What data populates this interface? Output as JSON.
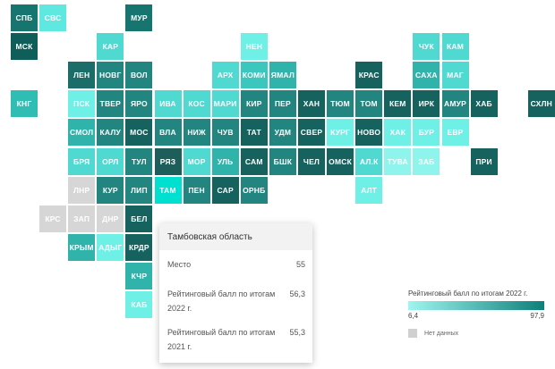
{
  "colors": {
    "no_data": "#d6d6d6",
    "scale_min": "#9ff5ef",
    "scale_max": "#0e7f7a",
    "highlight": "#00e0d0"
  },
  "regions": [
    {
      "code": "СПБ",
      "col": 0,
      "row": 0,
      "score": null,
      "tone": "#17756f"
    },
    {
      "code": "СВС",
      "col": 1,
      "row": 0,
      "tone": "#5fe8df"
    },
    {
      "code": "МУР",
      "col": 4,
      "row": 0,
      "tone": "#17756f"
    },
    {
      "code": "МСК",
      "col": 0,
      "row": 1,
      "tone": "#0f5e5a"
    },
    {
      "code": "КАР",
      "col": 3,
      "row": 1,
      "tone": "#4fd9d0"
    },
    {
      "code": "НЕН",
      "col": 8,
      "row": 1,
      "tone": "#6ff0e6"
    },
    {
      "code": "ЧУК",
      "col": 14,
      "row": 1,
      "tone": "#4fd9d0"
    },
    {
      "code": "КАМ",
      "col": 15,
      "row": 1,
      "tone": "#4fd9d0"
    },
    {
      "code": "ЛЕН",
      "col": 2,
      "row": 2,
      "tone": "#1b6d69"
    },
    {
      "code": "НОВГ",
      "col": 3,
      "row": 2,
      "tone": "#23857f"
    },
    {
      "code": "ВОЛ",
      "col": 4,
      "row": 2,
      "tone": "#23857f"
    },
    {
      "code": "АРХ",
      "col": 7,
      "row": 2,
      "tone": "#4fd9d0"
    },
    {
      "code": "КОМИ",
      "col": 8,
      "row": 2,
      "tone": "#3cc7be"
    },
    {
      "code": "ЯМАЛ",
      "col": 9,
      "row": 2,
      "tone": "#30b3ab"
    },
    {
      "code": "КРАС",
      "col": 12,
      "row": 2,
      "tone": "#16625e"
    },
    {
      "code": "САХА",
      "col": 14,
      "row": 2,
      "tone": "#30b3ab"
    },
    {
      "code": "МАГ",
      "col": 15,
      "row": 2,
      "tone": "#4fd9d0"
    },
    {
      "code": "КНГ",
      "col": 0,
      "row": 3,
      "tone": "#2fbdb4"
    },
    {
      "code": "ПСК",
      "col": 2,
      "row": 3,
      "tone": "#6ff0e6"
    },
    {
      "code": "ТВЕР",
      "col": 3,
      "row": 3,
      "tone": "#23857f"
    },
    {
      "code": "ЯРО",
      "col": 4,
      "row": 3,
      "tone": "#23857f"
    },
    {
      "code": "ИВА",
      "col": 5,
      "row": 3,
      "tone": "#4fd9d0"
    },
    {
      "code": "КОС",
      "col": 6,
      "row": 3,
      "tone": "#4fd9d0"
    },
    {
      "code": "МАРИ",
      "col": 7,
      "row": 3,
      "tone": "#4fd9d0"
    },
    {
      "code": "КИР",
      "col": 8,
      "row": 3,
      "tone": "#23857f"
    },
    {
      "code": "ПЕР",
      "col": 9,
      "row": 3,
      "tone": "#23857f"
    },
    {
      "code": "ХАН",
      "col": 10,
      "row": 3,
      "tone": "#16625e"
    },
    {
      "code": "ТЮМ",
      "col": 11,
      "row": 3,
      "tone": "#23857f"
    },
    {
      "code": "ТОМ",
      "col": 12,
      "row": 3,
      "tone": "#23857f"
    },
    {
      "code": "КЕМ",
      "col": 13,
      "row": 3,
      "tone": "#16625e"
    },
    {
      "code": "ИРК",
      "col": 14,
      "row": 3,
      "tone": "#16625e"
    },
    {
      "code": "АМУР",
      "col": 15,
      "row": 3,
      "tone": "#23857f"
    },
    {
      "code": "ХАБ",
      "col": 16,
      "row": 3,
      "tone": "#16625e"
    },
    {
      "code": "СХЛН",
      "col": 18,
      "row": 3,
      "tone": "#16625e"
    },
    {
      "code": "СМОЛ",
      "col": 2,
      "row": 4,
      "tone": "#30b3ab"
    },
    {
      "code": "КАЛУ",
      "col": 3,
      "row": 4,
      "tone": "#23857f"
    },
    {
      "code": "МОС",
      "col": 4,
      "row": 4,
      "tone": "#16625e"
    },
    {
      "code": "ВЛА",
      "col": 5,
      "row": 4,
      "tone": "#23857f"
    },
    {
      "code": "НИЖ",
      "col": 6,
      "row": 4,
      "tone": "#23857f"
    },
    {
      "code": "ЧУВ",
      "col": 7,
      "row": 4,
      "tone": "#23857f"
    },
    {
      "code": "ТАТ",
      "col": 8,
      "row": 4,
      "tone": "#16625e"
    },
    {
      "code": "УДМ",
      "col": 9,
      "row": 4,
      "tone": "#23857f"
    },
    {
      "code": "СВЕР",
      "col": 10,
      "row": 4,
      "tone": "#16625e"
    },
    {
      "code": "КУРГ",
      "col": 11,
      "row": 4,
      "tone": "#6ff0e6"
    },
    {
      "code": "НОВО",
      "col": 12,
      "row": 4,
      "tone": "#16625e"
    },
    {
      "code": "ХАК",
      "col": 13,
      "row": 4,
      "tone": "#6ff0e6"
    },
    {
      "code": "БУР",
      "col": 14,
      "row": 4,
      "tone": "#6ff0e6"
    },
    {
      "code": "ЕВР",
      "col": 15,
      "row": 4,
      "tone": "#6ff0e6"
    },
    {
      "code": "БРЯ",
      "col": 2,
      "row": 5,
      "tone": "#4fd9d0"
    },
    {
      "code": "ОРЛ",
      "col": 3,
      "row": 5,
      "tone": "#4fd9d0"
    },
    {
      "code": "ТУЛ",
      "col": 4,
      "row": 5,
      "tone": "#23857f"
    },
    {
      "code": "РЯЗ",
      "col": 5,
      "row": 5,
      "tone": "#1d5e5a"
    },
    {
      "code": "МОР",
      "col": 6,
      "row": 5,
      "tone": "#4fd9d0"
    },
    {
      "code": "УЛЬ",
      "col": 7,
      "row": 5,
      "tone": "#30b3ab"
    },
    {
      "code": "САМ",
      "col": 8,
      "row": 5,
      "tone": "#16625e"
    },
    {
      "code": "БШК",
      "col": 9,
      "row": 5,
      "tone": "#23857f"
    },
    {
      "code": "ЧЕЛ",
      "col": 10,
      "row": 5,
      "tone": "#16625e"
    },
    {
      "code": "ОМСК",
      "col": 11,
      "row": 5,
      "tone": "#16625e"
    },
    {
      "code": "АЛ.К",
      "col": 12,
      "row": 5,
      "tone": "#4fd9d0"
    },
    {
      "code": "ТУВА",
      "col": 13,
      "row": 5,
      "tone": "#8ff5ec"
    },
    {
      "code": "ЗАБ",
      "col": 14,
      "row": 5,
      "tone": "#8ff5ec"
    },
    {
      "code": "ПРИ",
      "col": 16,
      "row": 5,
      "tone": "#16625e"
    },
    {
      "code": "ЛНР",
      "col": 2,
      "row": 6,
      "tone": "#d6d6d6"
    },
    {
      "code": "КУР",
      "col": 3,
      "row": 6,
      "tone": "#23857f"
    },
    {
      "code": "ЛИП",
      "col": 4,
      "row": 6,
      "tone": "#23857f"
    },
    {
      "code": "ТАМ",
      "col": 5,
      "row": 6,
      "tone": "#00e0d0"
    },
    {
      "code": "ПЕН",
      "col": 6,
      "row": 6,
      "tone": "#23857f"
    },
    {
      "code": "САР",
      "col": 7,
      "row": 6,
      "tone": "#16625e"
    },
    {
      "code": "ОРНБ",
      "col": 8,
      "row": 6,
      "tone": "#23857f"
    },
    {
      "code": "АЛТ",
      "col": 12,
      "row": 6,
      "tone": "#6ff0e6"
    },
    {
      "code": "КРС",
      "col": 1,
      "row": 7,
      "tone": "#d6d6d6"
    },
    {
      "code": "ЗАП",
      "col": 2,
      "row": 7,
      "tone": "#d6d6d6"
    },
    {
      "code": "ДНР",
      "col": 3,
      "row": 7,
      "tone": "#d6d6d6"
    },
    {
      "code": "БЕЛ",
      "col": 4,
      "row": 7,
      "tone": "#16625e"
    },
    {
      "code": "КРЫМ",
      "col": 2,
      "row": 8,
      "tone": "#30b3ab"
    },
    {
      "code": "АДЫГ",
      "col": 3,
      "row": 8,
      "tone": "#6ff0e6"
    },
    {
      "code": "КРДР",
      "col": 4,
      "row": 8,
      "tone": "#16625e"
    },
    {
      "code": "КЧР",
      "col": 4,
      "row": 9,
      "tone": "#30b3ab"
    },
    {
      "code": "КАБ",
      "col": 4,
      "row": 10,
      "tone": "#6ff0e6"
    }
  ],
  "tooltip": {
    "title": "Тамбовская область",
    "rows": [
      {
        "label": "Место",
        "value": "55"
      },
      {
        "label": "Рейтинговый балл по итогам 2022 г.",
        "value": "56,3"
      },
      {
        "label": "Рейтинговый балл по итогам 2021 г.",
        "value": "55,3"
      }
    ]
  },
  "legend": {
    "title": "Рейтинговый балл по итогам 2022 г.",
    "min": "6,4",
    "max": "97,9",
    "no_data_label": "Нет данных"
  }
}
